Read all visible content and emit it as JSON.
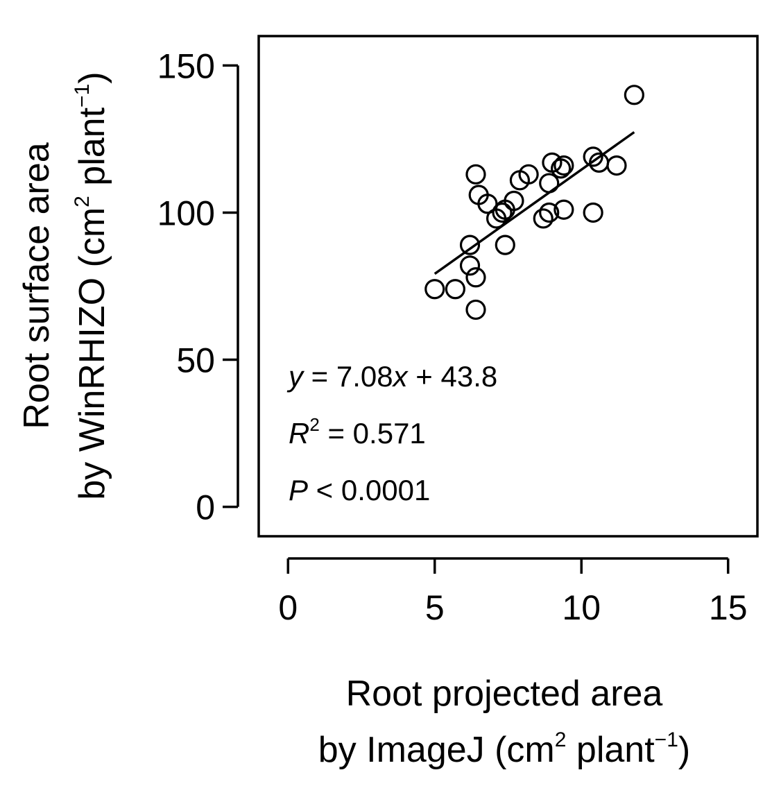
{
  "chart_data": {
    "type": "scatter",
    "xlabel_line1": "Root projected area",
    "xlabel_line2_pre": "by ImageJ (cm",
    "xlabel_line2_sup1": "2",
    "xlabel_line2_mid": " plant",
    "xlabel_line2_sup2": "−1",
    "xlabel_line2_post": ")",
    "ylabel_line1": "Root surface area",
    "ylabel_line2_pre": "by WinRHIZO (cm",
    "ylabel_line2_sup1": "2",
    "ylabel_line2_mid": " plant",
    "ylabel_line2_sup2": "−1",
    "ylabel_line2_post": ")",
    "xlim": [
      -1,
      16
    ],
    "ylim": [
      -10,
      160
    ],
    "x_ticks": [
      0,
      5,
      10,
      15
    ],
    "y_ticks": [
      0,
      50,
      100,
      150
    ],
    "x_tick_labels": [
      "0",
      "5",
      "10",
      "15"
    ],
    "y_tick_labels": [
      "0",
      "50",
      "100",
      "150"
    ],
    "points": [
      {
        "x": 5.0,
        "y": 74
      },
      {
        "x": 5.7,
        "y": 74
      },
      {
        "x": 6.2,
        "y": 89
      },
      {
        "x": 6.2,
        "y": 82
      },
      {
        "x": 6.4,
        "y": 78
      },
      {
        "x": 6.4,
        "y": 67
      },
      {
        "x": 6.4,
        "y": 113
      },
      {
        "x": 6.5,
        "y": 106
      },
      {
        "x": 6.8,
        "y": 103
      },
      {
        "x": 7.1,
        "y": 98
      },
      {
        "x": 7.3,
        "y": 100
      },
      {
        "x": 7.4,
        "y": 101
      },
      {
        "x": 7.4,
        "y": 89
      },
      {
        "x": 7.7,
        "y": 104
      },
      {
        "x": 7.9,
        "y": 111
      },
      {
        "x": 8.2,
        "y": 113
      },
      {
        "x": 8.7,
        "y": 98
      },
      {
        "x": 8.9,
        "y": 100
      },
      {
        "x": 8.9,
        "y": 110
      },
      {
        "x": 9.0,
        "y": 117
      },
      {
        "x": 9.3,
        "y": 115
      },
      {
        "x": 9.4,
        "y": 116
      },
      {
        "x": 9.4,
        "y": 101
      },
      {
        "x": 10.4,
        "y": 119
      },
      {
        "x": 10.4,
        "y": 100
      },
      {
        "x": 10.6,
        "y": 117
      },
      {
        "x": 11.2,
        "y": 116
      },
      {
        "x": 11.8,
        "y": 140
      }
    ],
    "regression": {
      "slope": 7.08,
      "intercept": 43.8,
      "x_range": [
        5.0,
        11.8
      ]
    },
    "annotations": {
      "eq_y": "y",
      "eq_mid": " = 7.08",
      "eq_x": "x",
      "eq_post": " + 43.8",
      "r2_R": "R",
      "r2_sup": "2",
      "r2_post": " = 0.571",
      "p_P": "P",
      "p_post": " < 0.0001"
    }
  }
}
